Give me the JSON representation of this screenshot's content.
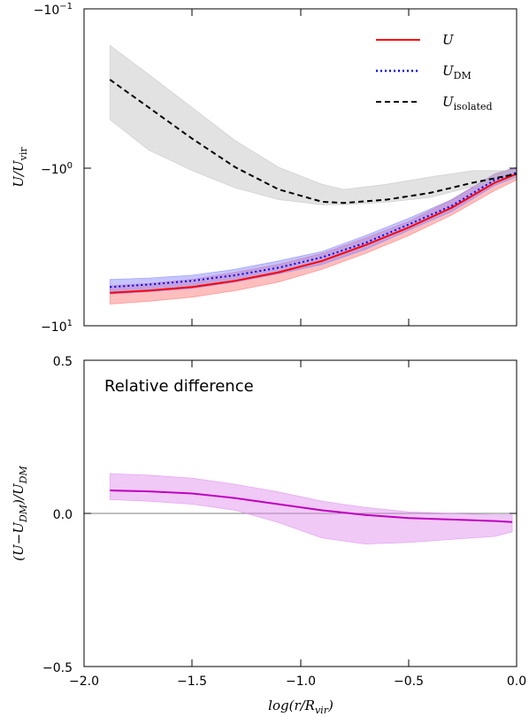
{
  "chart_data": [
    {
      "type": "line",
      "panel": "top",
      "ylabel": "U/U_vir",
      "xlim": [
        -2.0,
        0.0
      ],
      "yscale": "symlog",
      "ylim": [
        -0.1,
        -10
      ],
      "yticks": [
        {
          "value": -0.1,
          "label": "−10⁻¹"
        },
        {
          "value": -1,
          "label": "−10⁰"
        },
        {
          "value": -10,
          "label": "−10¹"
        }
      ],
      "legend": {
        "position": "top-right"
      },
      "series": [
        {
          "name": "U",
          "color": "#ff0000",
          "band_color": "#ff6f6f",
          "style": "solid",
          "x": [
            -1.88,
            -1.7,
            -1.5,
            -1.3,
            -1.1,
            -0.9,
            -0.7,
            -0.5,
            -0.3,
            -0.1,
            -0.0
          ],
          "y": [
            -6.2,
            -6.0,
            -5.7,
            -5.2,
            -4.6,
            -3.9,
            -3.1,
            -2.4,
            -1.8,
            -1.25,
            -1.1
          ],
          "band_lo": [
            -7.3,
            -7.0,
            -6.6,
            -6.0,
            -5.3,
            -4.4,
            -3.5,
            -2.7,
            -2.0,
            -1.4,
            -1.2
          ],
          "band_hi": [
            -5.6,
            -5.4,
            -5.1,
            -4.6,
            -4.1,
            -3.5,
            -2.8,
            -2.2,
            -1.6,
            -1.1,
            -1.0
          ]
        },
        {
          "name": "U_DM",
          "color": "#0000ff",
          "band_color": "#7f7fff",
          "style": "dotted",
          "x": [
            -1.88,
            -1.7,
            -1.5,
            -1.3,
            -1.1,
            -0.9,
            -0.7,
            -0.5,
            -0.3,
            -0.1,
            -0.0
          ],
          "y": [
            -5.7,
            -5.5,
            -5.2,
            -4.8,
            -4.3,
            -3.7,
            -3.0,
            -2.3,
            -1.75,
            -1.2,
            -1.08
          ],
          "band_lo": [
            -6.3,
            -6.1,
            -5.8,
            -5.3,
            -4.7,
            -4.1,
            -3.3,
            -2.5,
            -1.9,
            -1.3,
            -1.15
          ],
          "band_hi": [
            -5.1,
            -5.0,
            -4.8,
            -4.4,
            -3.9,
            -3.4,
            -2.7,
            -2.1,
            -1.6,
            -1.1,
            -1.0
          ]
        },
        {
          "name": "U_isolated",
          "color": "#000000",
          "band_color": "#bfbfbf",
          "style": "dashed",
          "x": [
            -1.88,
            -1.7,
            -1.5,
            -1.3,
            -1.1,
            -0.9,
            -0.8,
            -0.6,
            -0.4,
            -0.2,
            -0.0
          ],
          "y": [
            -0.28,
            -0.42,
            -0.66,
            -1.0,
            -1.38,
            -1.65,
            -1.68,
            -1.6,
            -1.45,
            -1.25,
            -1.1
          ],
          "band_lo": [
            -0.17,
            -0.26,
            -0.42,
            -0.68,
            -1.0,
            -1.28,
            -1.38,
            -1.28,
            -1.15,
            -1.05,
            -1.05
          ],
          "band_hi": [
            -0.5,
            -0.78,
            -1.05,
            -1.35,
            -1.6,
            -1.72,
            -1.72,
            -1.66,
            -1.55,
            -1.32,
            -1.15
          ]
        }
      ]
    },
    {
      "type": "line",
      "panel": "bottom",
      "ylabel": "(U−U_DM)/U_DM",
      "xlabel": "log(r/R_vir)",
      "xlim": [
        -2.0,
        0.0
      ],
      "ylim": [
        -0.5,
        0.5
      ],
      "xticks": [
        {
          "value": -2.0,
          "label": "−2.0"
        },
        {
          "value": -1.5,
          "label": "−1.5"
        },
        {
          "value": -1.0,
          "label": "−1.0"
        },
        {
          "value": -0.5,
          "label": "−0.5"
        },
        {
          "value": 0.0,
          "label": "0.0"
        }
      ],
      "yticks": [
        {
          "value": -0.5,
          "label": "−0.5"
        },
        {
          "value": 0.0,
          "label": "0.0"
        },
        {
          "value": 0.5,
          "label": "0.5"
        }
      ],
      "annotation": "Relative difference",
      "reference_line": 0.0,
      "series": [
        {
          "name": "",
          "color": "#bf00bf",
          "band_color": "#dd88ee",
          "style": "solid",
          "x": [
            -1.88,
            -1.7,
            -1.5,
            -1.3,
            -1.1,
            -0.9,
            -0.7,
            -0.5,
            -0.3,
            -0.1,
            -0.02
          ],
          "y": [
            0.075,
            0.072,
            0.065,
            0.05,
            0.03,
            0.01,
            -0.005,
            -0.015,
            -0.02,
            -0.025,
            -0.028
          ],
          "band_lo": [
            0.13,
            0.125,
            0.115,
            0.095,
            0.07,
            0.04,
            0.02,
            0.005,
            0.0,
            -0.005,
            -0.005
          ],
          "band_hi": [
            0.045,
            0.04,
            0.03,
            0.01,
            -0.03,
            -0.08,
            -0.1,
            -0.095,
            -0.085,
            -0.075,
            -0.06
          ]
        }
      ]
    }
  ],
  "legend": {
    "u_label": "U",
    "udm_label": "U",
    "udm_sub": "DM",
    "uiso_label": "U",
    "uiso_sub": "isolated"
  },
  "axes": {
    "top_ylabel_main": "U/U",
    "top_ylabel_sub": "vir",
    "bottom_ylabel_a": "(U−U",
    "bottom_ylabel_sub1": "DM",
    "bottom_ylabel_b": ")/U",
    "bottom_ylabel_sub2": "DM",
    "xlabel_a": "log(r/R",
    "xlabel_sub": "vir",
    "xlabel_b": ")"
  },
  "annotation_text": "Relative difference",
  "top_yticks": {
    "t1": "−10",
    "t1e": "−1",
    "t2": "−10",
    "t2e": "0",
    "t3": "−10",
    "t3e": "1"
  },
  "bottom_yticks": {
    "t1": "0.5",
    "t2": "0.0",
    "t3": "−0.5"
  },
  "xticks": {
    "t1": "−2.0",
    "t2": "−1.5",
    "t3": "−1.0",
    "t4": "−0.5",
    "t5": "0.0"
  }
}
